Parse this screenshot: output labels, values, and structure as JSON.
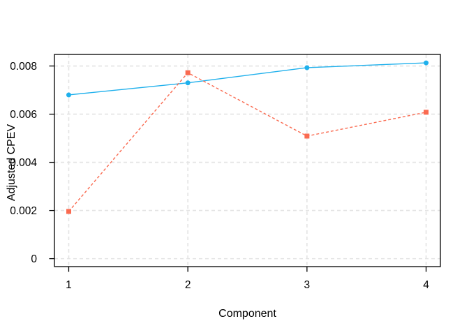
{
  "chart_data": {
    "type": "line",
    "title": "",
    "xlabel": "Component",
    "ylabel": "Adjusted CPEV",
    "x": [
      1,
      2,
      3,
      4
    ],
    "series": [
      {
        "name": "adjusted-cpev-line",
        "color": "#1FB0EC",
        "line_style": "solid",
        "marker": "circle",
        "values": [
          0.0068,
          0.0073,
          0.00793,
          0.00813
        ]
      },
      {
        "name": "comparison-dashed-line",
        "color": "#FA6A50",
        "line_style": "dashed",
        "marker": "square",
        "values": [
          0.00196,
          0.00772,
          0.00509,
          0.00608
        ]
      }
    ],
    "xticks": [
      1,
      2,
      3,
      4
    ],
    "xtick_labels": [
      "1",
      "2",
      "3",
      "4"
    ],
    "yticks": [
      0,
      0.002,
      0.004,
      0.006,
      0.008
    ],
    "ytick_labels": [
      "0",
      "0.002",
      "0.004",
      "0.006",
      "0.008"
    ],
    "xlim": [
      0.88,
      4.12
    ],
    "ylim": [
      -0.00033,
      0.00848
    ],
    "grid": true,
    "grid_color": "#E3E3E3",
    "axis_color": "#000000",
    "background_color": "#FFFFFF",
    "legend_position": "none"
  }
}
